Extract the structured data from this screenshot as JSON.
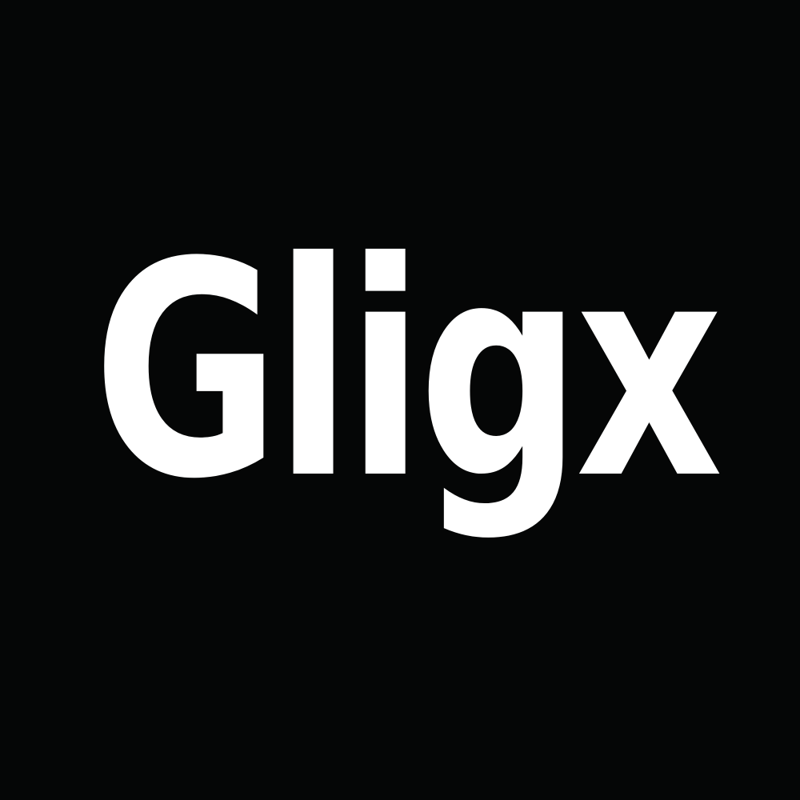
{
  "logo": {
    "wordmark": "Gligx",
    "text_color": "#ffffff",
    "background_color": "#050606"
  }
}
